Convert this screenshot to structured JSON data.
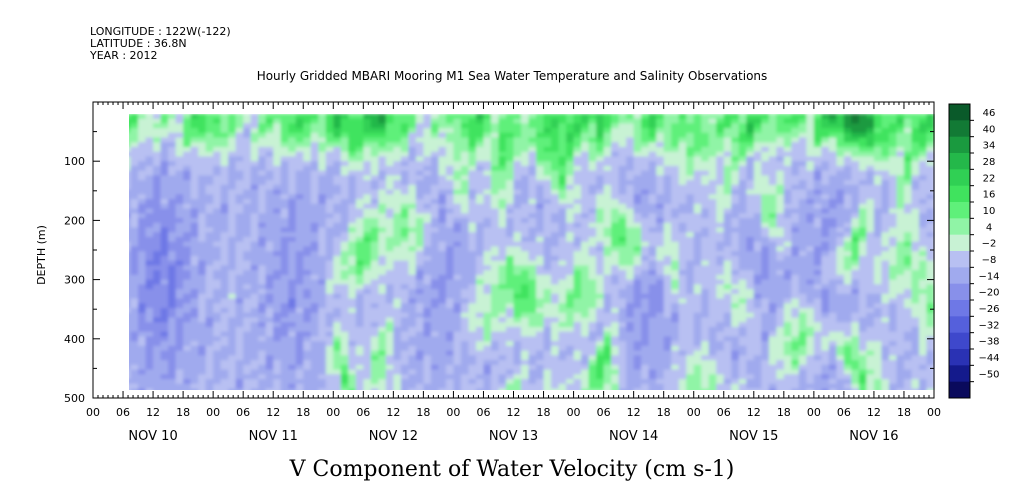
{
  "header": {
    "longitude": "LONGITUDE : 122W(-122)",
    "latitude": "LATITUDE : 36.8N",
    "year": "YEAR : 2012"
  },
  "chart_data": {
    "type": "heatmap",
    "title": "Hourly Gridded MBARI Mooring M1 Sea Water Temperature and Salinity Observations",
    "xlabel": "V Component of Water Velocity (cm s-1)",
    "ylabel": "DEPTH (m)",
    "ylim": [
      500,
      0
    ],
    "y_ticks": [
      100,
      200,
      300,
      400,
      500
    ],
    "x_hour_ticks": [
      "00",
      "06",
      "12",
      "18",
      "00",
      "06",
      "12",
      "18",
      "00",
      "06",
      "12",
      "18",
      "00",
      "06",
      "12",
      "18",
      "00",
      "06",
      "12",
      "18",
      "00",
      "06",
      "12",
      "18",
      "00",
      "06",
      "12",
      "18",
      "00"
    ],
    "x_day_labels": [
      "NOV 10",
      "NOV 11",
      "NOV 12",
      "NOV 13",
      "NOV 14",
      "NOV 15",
      "NOV 16"
    ],
    "data_depth_range": [
      20,
      490
    ],
    "data_time_start_hour": 6,
    "data_time_end_hour": 168,
    "colorbar_levels": [
      46,
      40,
      34,
      28,
      22,
      16,
      10,
      4,
      -2,
      -8,
      -14,
      -20,
      -26,
      -32,
      -38,
      -44,
      -50
    ],
    "colorbar_colors": [
      "#0a5a2a",
      "#127a35",
      "#1a9a3f",
      "#24b84a",
      "#30d054",
      "#40e35e",
      "#5ff07a",
      "#90f4a6",
      "#c8f2d4",
      "#b8c0f2",
      "#a0aaee",
      "#8890ea",
      "#6e78e6",
      "#5560dc",
      "#3e48cc",
      "#2a32b4",
      "#141a8c",
      "#0a0a5c"
    ],
    "dominant_pattern": "Alternating bands of northward (green, ~4 to 22 cm/s) and southward (blue, ~-2 to -26 cm/s) flow; stronger positive values near the surface (20–120 m) and vertical green streaks through the column around NOV 12 06, NOV 13 06, NOV 14 06, NOV 15 18 and NOV 16 06."
  }
}
